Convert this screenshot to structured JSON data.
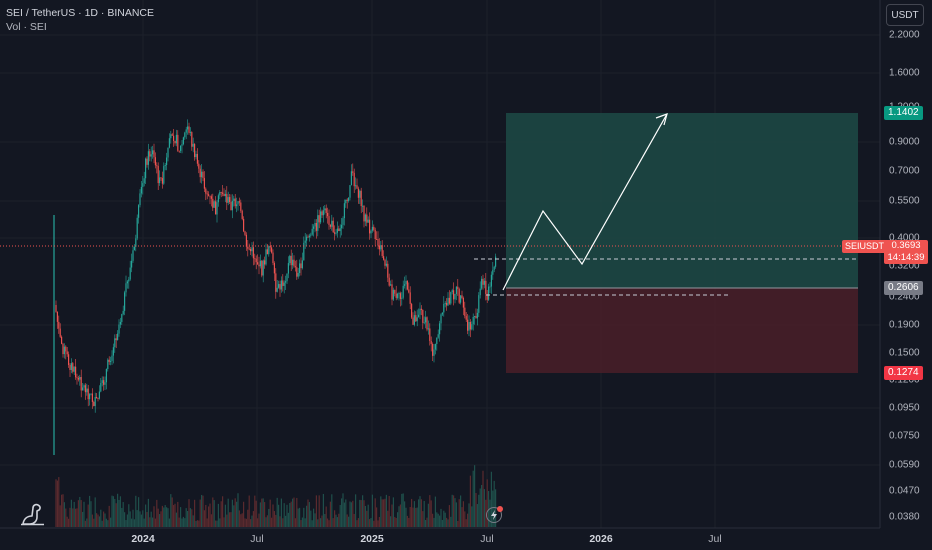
{
  "header": {
    "title": "SEI / TetherUS · 1D · BINANCE",
    "volume_label": "Vol · SEI"
  },
  "currency_button": "USDT",
  "price_axis": {
    "ticks": [
      "2.2000",
      "1.6000",
      "1.2000",
      "0.9000",
      "0.7000",
      "0.5500",
      "0.4000",
      "0.3200",
      "0.2400",
      "0.1900",
      "0.1500",
      "0.1200",
      "0.0950",
      "0.0750",
      "0.0590",
      "0.0470",
      "0.0380"
    ],
    "target_tag": "1.1402",
    "symbol_tag": "SEIUSDT",
    "last_price": "0.3693",
    "countdown": "14:14:39",
    "entry_tag": "0.2606",
    "stop_tag": "0.1274"
  },
  "time_axis": {
    "ticks": [
      "2024",
      "Jul",
      "2025",
      "Jul",
      "2026",
      "Jul"
    ]
  },
  "colors": {
    "up": "#26a69a",
    "down": "#ef5350",
    "background": "#131722",
    "profit_zone": "#1d4a45",
    "loss_zone": "#4a1f28",
    "target_tag": "#089981",
    "entry_tag": "#787b86",
    "stop_tag": "#f23645"
  },
  "icons": {
    "logo": "tradingview-dino-icon",
    "replay": "replay-icon"
  }
}
